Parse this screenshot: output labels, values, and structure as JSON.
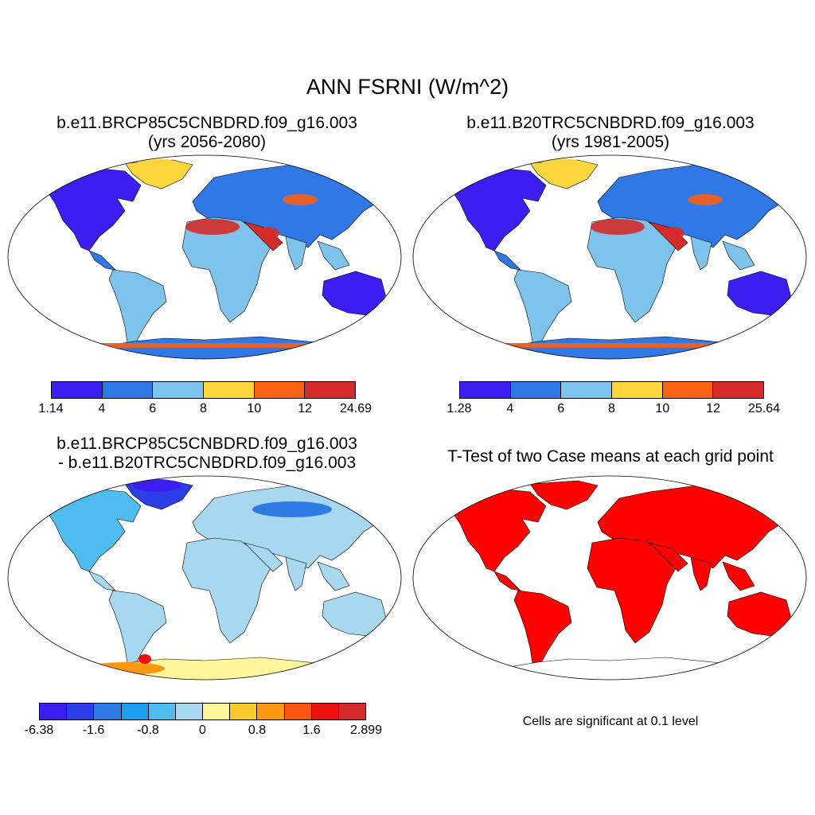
{
  "title": "ANN FSRNI (W/m^2)",
  "panels": [
    {
      "title_line1": "b.e11.BRCP85C5CNBDRD.f09_g16.003",
      "title_line2": "(yrs 2056-2080)",
      "colorbar": {
        "colors": [
          "#3b1ef0",
          "#2f78e6",
          "#7ec3ec",
          "#fbd73c",
          "#fa6115",
          "#d62b2b"
        ],
        "labels": [
          "1.14",
          "4",
          "6",
          "8",
          "10",
          "12",
          "24.69"
        ]
      }
    },
    {
      "title_line1": "b.e11.B20TRC5CNBDRD.f09_g16.003",
      "title_line2": "(yrs 1981-2005)",
      "colorbar": {
        "colors": [
          "#3b1ef0",
          "#2f78e6",
          "#7ec3ec",
          "#fbd73c",
          "#fa6115",
          "#d62b2b"
        ],
        "labels": [
          "1.28",
          "4",
          "6",
          "8",
          "10",
          "12",
          "25.64"
        ]
      }
    },
    {
      "title_line1": "b.e11.BRCP85C5CNBDRD.f09_g16.003",
      "title_line2": "- b.e11.B20TRC5CNBDRD.f09_g16.003",
      "colorbar": {
        "colors": [
          "#3b1ef0",
          "#2b3ee8",
          "#2f7be6",
          "#1f9df0",
          "#4fbcf0",
          "#a8d8ef",
          "#fff59a",
          "#fcc82c",
          "#fb9a12",
          "#fa5510",
          "#ee0f0f",
          "#d42a2a"
        ],
        "labels": [
          "-6.38",
          "-1.6",
          "-0.8",
          "0",
          "0.8",
          "1.6",
          "2.899"
        ]
      }
    },
    {
      "title": "T-Test of two Case means at each grid point",
      "note": "Cells are significant at 0.1 level",
      "significant_color": "#ff0000"
    }
  ]
}
